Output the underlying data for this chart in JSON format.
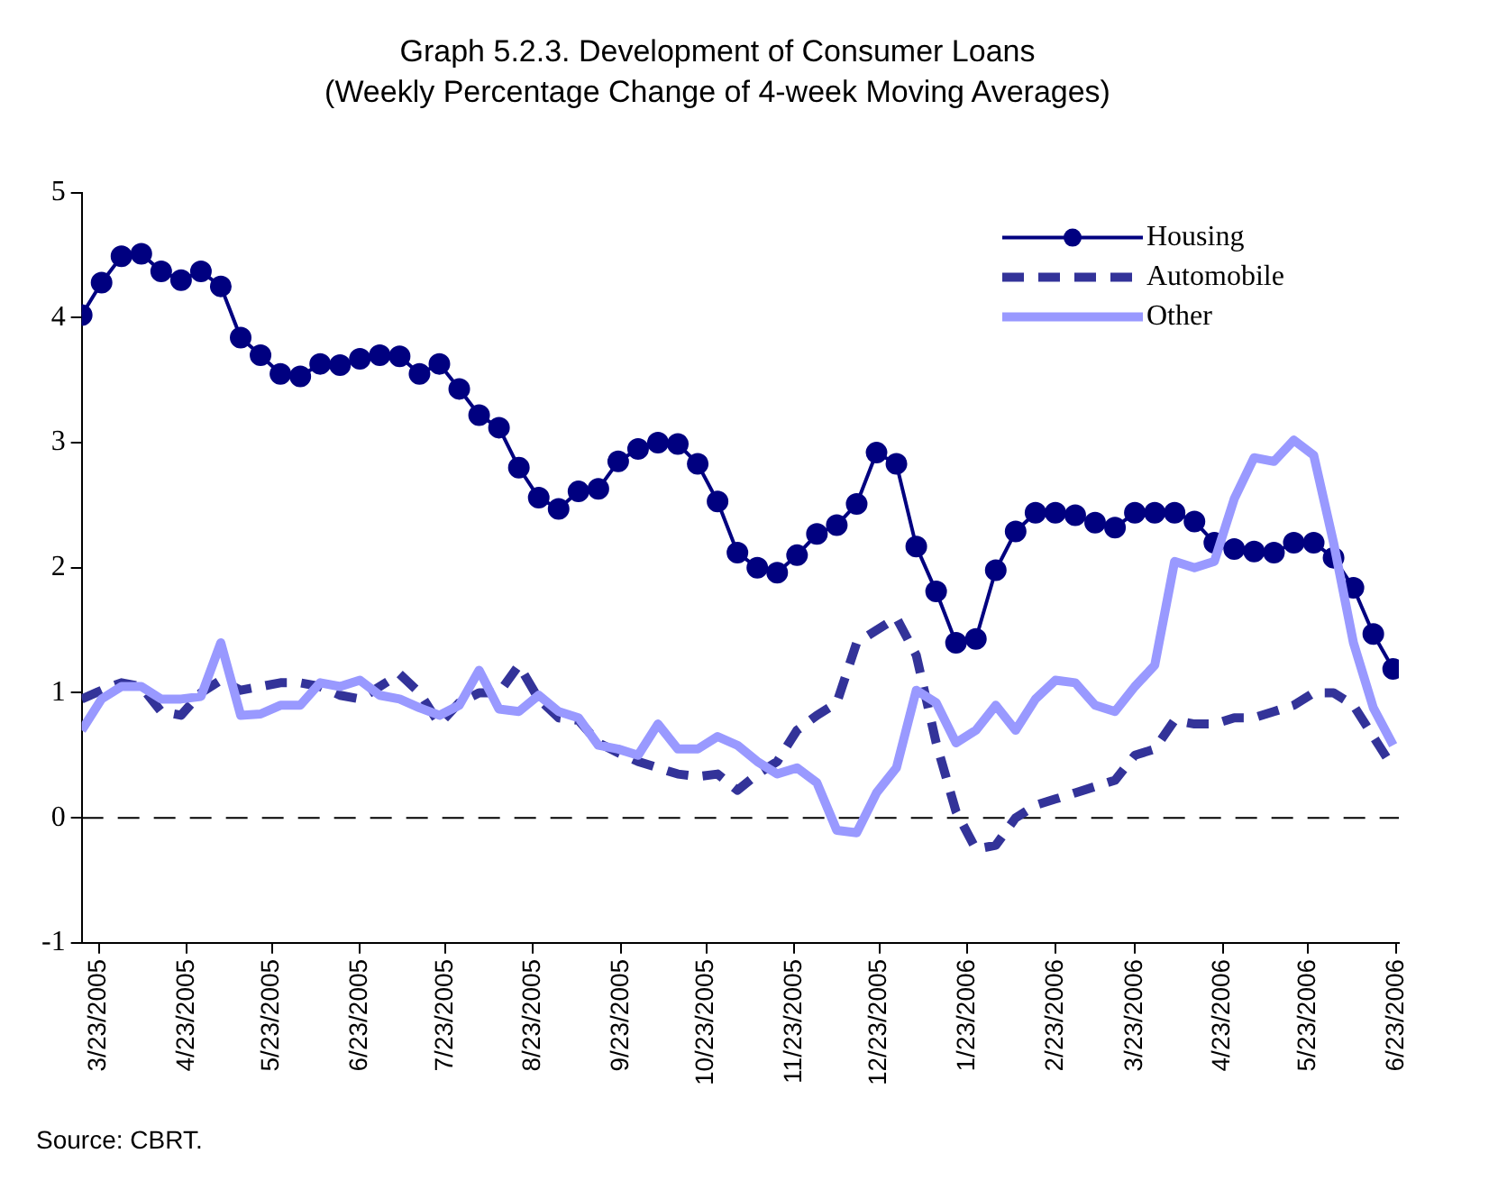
{
  "chart_data": {
    "type": "line",
    "title": "Graph 5.2.3. Development of Consumer Loans",
    "subtitle": "(Weekly Percentage Change of 4-week Moving Averages)",
    "x": [
      "2005-03-17",
      "2005-03-24",
      "2005-03-31",
      "2005-04-07",
      "2005-04-14",
      "2005-04-21",
      "2005-04-28",
      "2005-05-05",
      "2005-05-12",
      "2005-05-19",
      "2005-05-26",
      "2005-06-02",
      "2005-06-09",
      "2005-06-16",
      "2005-06-23",
      "2005-06-30",
      "2005-07-07",
      "2005-07-14",
      "2005-07-21",
      "2005-07-28",
      "2005-08-04",
      "2005-08-11",
      "2005-08-18",
      "2005-08-25",
      "2005-09-01",
      "2005-09-08",
      "2005-09-15",
      "2005-09-22",
      "2005-09-29",
      "2005-10-06",
      "2005-10-13",
      "2005-10-20",
      "2005-10-27",
      "2005-11-03",
      "2005-11-10",
      "2005-11-17",
      "2005-11-24",
      "2005-12-01",
      "2005-12-08",
      "2005-12-15",
      "2005-12-22",
      "2005-12-29",
      "2006-01-05",
      "2006-01-12",
      "2006-01-19",
      "2006-01-26",
      "2006-02-02",
      "2006-02-09",
      "2006-02-16",
      "2006-02-23",
      "2006-03-02",
      "2006-03-09",
      "2006-03-16",
      "2006-03-23",
      "2006-03-30",
      "2006-04-06",
      "2006-04-13",
      "2006-04-20",
      "2006-04-27",
      "2006-05-04",
      "2006-05-11",
      "2006-05-18",
      "2006-05-25",
      "2006-06-01",
      "2006-06-08",
      "2006-06-15",
      "2006-06-22"
    ],
    "series": [
      {
        "name": "Housing",
        "color": "#000080",
        "marker": "circle",
        "line_style": "solid",
        "values": [
          4.02,
          4.28,
          4.49,
          4.51,
          4.37,
          4.3,
          4.37,
          4.25,
          3.84,
          3.7,
          3.55,
          3.53,
          3.63,
          3.62,
          3.67,
          3.7,
          3.69,
          3.55,
          3.63,
          3.43,
          3.22,
          3.12,
          2.8,
          2.56,
          2.47,
          2.61,
          2.63,
          2.85,
          2.95,
          3.0,
          2.99,
          2.83,
          2.53,
          2.12,
          2.0,
          1.96,
          2.1,
          2.27,
          2.34,
          2.51,
          2.92,
          2.83,
          2.17,
          1.81,
          1.4,
          1.43,
          1.98,
          2.29,
          2.44,
          2.44,
          2.42,
          2.36,
          2.32,
          2.44,
          2.44,
          2.44,
          2.37,
          2.2,
          2.15,
          2.13,
          2.12,
          2.2,
          2.2,
          2.08,
          1.84,
          1.47,
          1.19
        ]
      },
      {
        "name": "Automobile",
        "color": "#333399",
        "marker": "none",
        "line_style": "dashed",
        "values": [
          0.95,
          1.02,
          1.08,
          1.05,
          0.85,
          0.82,
          1.0,
          1.1,
          1.02,
          1.05,
          1.08,
          1.08,
          1.05,
          0.98,
          0.95,
          1.05,
          1.15,
          1.0,
          0.75,
          0.92,
          1.0,
          1.0,
          1.22,
          0.95,
          0.8,
          0.78,
          0.6,
          0.52,
          0.45,
          0.4,
          0.35,
          0.33,
          0.35,
          0.22,
          0.35,
          0.45,
          0.7,
          0.82,
          0.92,
          1.4,
          1.5,
          1.6,
          1.3,
          0.6,
          0.05,
          -0.25,
          -0.22,
          0.0,
          0.1,
          0.15,
          0.2,
          0.25,
          0.3,
          0.5,
          0.55,
          0.78,
          0.75,
          0.75,
          0.8,
          0.8,
          0.85,
          0.9,
          1.0,
          1.0,
          0.9,
          0.65,
          0.4
        ]
      },
      {
        "name": "Other",
        "color": "#9999ff",
        "marker": "none",
        "line_style": "solid",
        "values": [
          0.7,
          0.95,
          1.05,
          1.05,
          0.95,
          0.95,
          0.97,
          1.4,
          0.82,
          0.83,
          0.9,
          0.9,
          1.08,
          1.05,
          1.1,
          0.98,
          0.95,
          0.88,
          0.82,
          0.9,
          1.18,
          0.87,
          0.85,
          0.98,
          0.85,
          0.8,
          0.58,
          0.55,
          0.5,
          0.75,
          0.55,
          0.55,
          0.65,
          0.58,
          0.45,
          0.35,
          0.4,
          0.28,
          -0.1,
          -0.12,
          0.2,
          0.4,
          1.02,
          0.92,
          0.6,
          0.7,
          0.9,
          0.7,
          0.95,
          1.1,
          1.08,
          0.9,
          0.85,
          1.05,
          1.22,
          2.05,
          2.0,
          2.05,
          2.55,
          2.88,
          2.85,
          3.02,
          2.9,
          2.2,
          1.4,
          0.88,
          0.58
        ]
      }
    ],
    "xlim": [
      "2005-03-17",
      "2006-06-24"
    ],
    "xticks": [
      {
        "value": "2005-03-23",
        "label": "3/23/2005"
      },
      {
        "value": "2005-04-23",
        "label": "4/23/2005"
      },
      {
        "value": "2005-05-23",
        "label": "5/23/2005"
      },
      {
        "value": "2005-06-23",
        "label": "6/23/2005"
      },
      {
        "value": "2005-07-23",
        "label": "7/23/2005"
      },
      {
        "value": "2005-08-23",
        "label": "8/23/2005"
      },
      {
        "value": "2005-09-23",
        "label": "9/23/2005"
      },
      {
        "value": "2005-10-23",
        "label": "10/23/2005"
      },
      {
        "value": "2005-11-23",
        "label": "11/23/2005"
      },
      {
        "value": "2005-12-23",
        "label": "12/23/2005"
      },
      {
        "value": "2006-01-23",
        "label": "1/23/2006"
      },
      {
        "value": "2006-02-23",
        "label": "2/23/2006"
      },
      {
        "value": "2006-03-23",
        "label": "3/23/2006"
      },
      {
        "value": "2006-04-23",
        "label": "4/23/2006"
      },
      {
        "value": "2006-05-23",
        "label": "5/23/2006"
      },
      {
        "value": "2006-06-23",
        "label": "6/23/2006"
      }
    ],
    "ylim": [
      -1,
      5
    ],
    "yticks": [
      -1,
      0,
      1,
      2,
      3,
      4,
      5
    ],
    "ref_lines": [
      {
        "axis": "y",
        "value": 0,
        "color": "#000000",
        "line_style": "dashed"
      }
    ],
    "grid": false,
    "legend": "top right",
    "annotations": [
      "Source: CBRT."
    ]
  }
}
